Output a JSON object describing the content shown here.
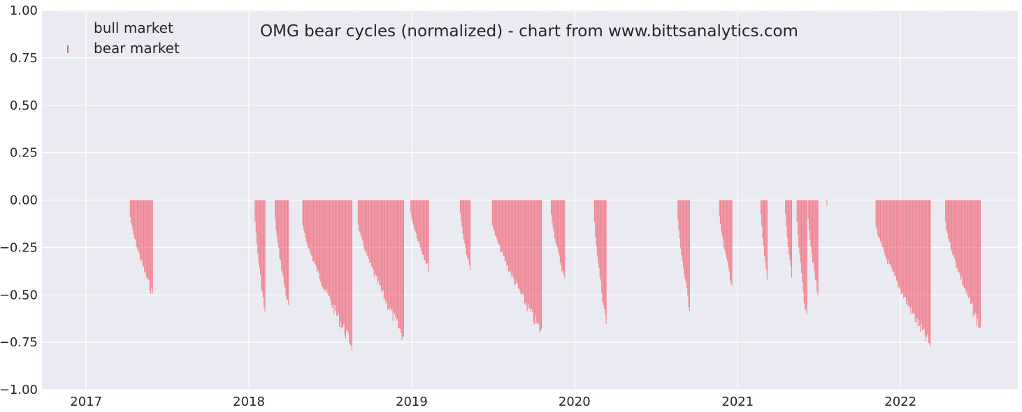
{
  "chart_data": {
    "type": "bar",
    "title": "OMG bear cycles (normalized)  - chart from www.bittsanalytics.com",
    "xlabel": "",
    "ylabel": "",
    "ylim": [
      -1.0,
      1.0
    ],
    "xlim": [
      "2016-09-24",
      "2022-09-21"
    ],
    "x_tick_labels": [
      "2017",
      "2018",
      "2019",
      "2020",
      "2021",
      "2022"
    ],
    "x_tick_dates": [
      "2017-01-01",
      "2018-01-01",
      "2019-01-01",
      "2020-01-01",
      "2021-01-01",
      "2022-01-01"
    ],
    "y_tick_values": [
      1.0,
      0.75,
      0.5,
      0.25,
      0.0,
      -0.25,
      -0.5,
      -0.75,
      -1.0
    ],
    "y_tick_labels": [
      "1.00",
      "0.75",
      "0.50",
      "0.25",
      "0.00",
      "−0.25",
      "−0.50",
      "−0.75",
      "−1.00"
    ],
    "grid": true,
    "legend_position": "top-left",
    "colors": {
      "background": "#EAEAF2",
      "grid": "#FFFFFF",
      "bull": "#EAEAF2",
      "bear": "#F06070"
    },
    "series": [
      {
        "name": "bull market",
        "note_values": "drawn as faint ticks near the 1.00 line, nearly invisible",
        "segments": []
      },
      {
        "name": "bear market",
        "segments": [
          {
            "start": "2017-04-10",
            "end": "2017-05-31",
            "min": -0.53
          },
          {
            "start": "2018-01-15",
            "end": "2018-02-06",
            "min": -0.63
          },
          {
            "start": "2018-03-01",
            "end": "2018-03-31",
            "min": -0.6
          },
          {
            "start": "2018-05-02",
            "end": "2018-08-21",
            "min": -0.81
          },
          {
            "start": "2018-09-03",
            "end": "2018-12-15",
            "min": -0.77
          },
          {
            "start": "2018-12-30",
            "end": "2019-02-08",
            "min": -0.38
          },
          {
            "start": "2019-04-20",
            "end": "2019-05-12",
            "min": -0.39
          },
          {
            "start": "2019-07-01",
            "end": "2019-10-20",
            "min": -0.74
          },
          {
            "start": "2019-11-10",
            "end": "2019-12-10",
            "min": -0.44
          },
          {
            "start": "2020-02-15",
            "end": "2020-03-13",
            "min": -0.7
          },
          {
            "start": "2020-08-20",
            "end": "2020-09-15",
            "min": -0.6
          },
          {
            "start": "2020-11-21",
            "end": "2020-12-20",
            "min": -0.48
          },
          {
            "start": "2021-02-22",
            "end": "2021-03-08",
            "min": -0.44
          },
          {
            "start": "2021-04-18",
            "end": "2021-05-02",
            "min": -0.43
          },
          {
            "start": "2021-05-14",
            "end": "2021-06-05",
            "min": -0.67
          },
          {
            "start": "2021-06-08",
            "end": "2021-07-01",
            "min": -0.55
          },
          {
            "start": "2021-07-18",
            "end": "2021-07-20",
            "min": -0.03
          },
          {
            "start": "2021-11-07",
            "end": "2022-03-09",
            "min": -0.81
          },
          {
            "start": "2022-04-12",
            "end": "2022-06-30",
            "min": -0.72
          }
        ]
      }
    ]
  }
}
